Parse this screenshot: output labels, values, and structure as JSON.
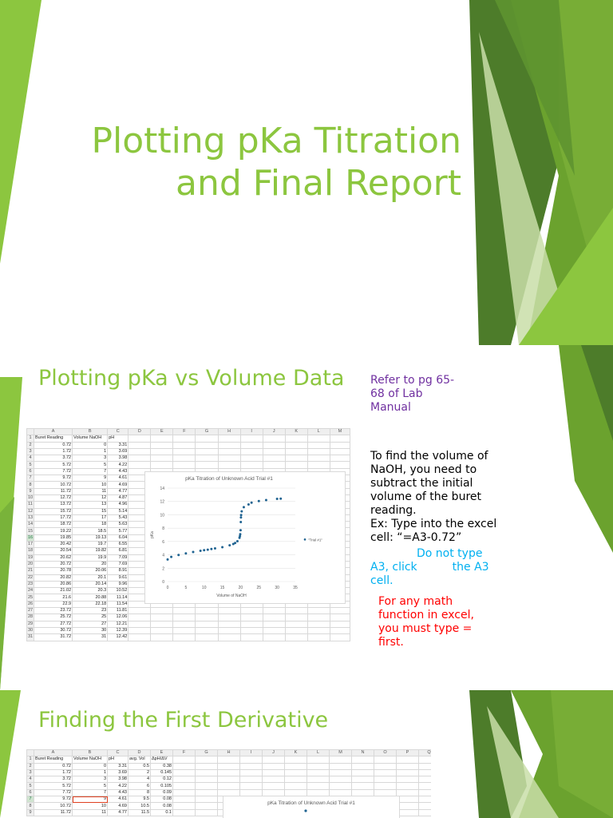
{
  "slide1": {
    "title_line1": "Plotting pKa Titration",
    "title_line2": "and Final Report"
  },
  "slide2": {
    "heading": "Plotting pKa vs Volume Data",
    "ref_note": [
      "Refer to pg 65-",
      "68 of Lab",
      "Manual"
    ],
    "instruction": [
      "To find the volume of",
      "NaOH, you need to",
      "subtract the initial",
      "volume of the buret",
      "reading.",
      "Ex: Type into the excel",
      "cell: “=A3-0.72”"
    ],
    "tip": [
      "Do not type",
      "A3, click",
      "the A3",
      "cell."
    ],
    "warning": [
      "For any math",
      "function in excel,",
      "you must type =",
      "first."
    ],
    "sheet": {
      "columns": [
        "",
        "A",
        "B",
        "C",
        "D",
        "E",
        "F",
        "G",
        "H",
        "I",
        "J",
        "K",
        "L",
        "M"
      ],
      "headers": [
        "Buret Reading",
        "Volume NaOH",
        "pH"
      ],
      "rows": [
        [
          "0.72",
          "0",
          "3.31"
        ],
        [
          "1.72",
          "1",
          "3.69"
        ],
        [
          "3.72",
          "3",
          "3.98"
        ],
        [
          "5.72",
          "5",
          "4.22"
        ],
        [
          "7.72",
          "7",
          "4.43"
        ],
        [
          "9.72",
          "9",
          "4.61"
        ],
        [
          "10.72",
          "10",
          "4.69"
        ],
        [
          "11.72",
          "11",
          "4.77"
        ],
        [
          "12.72",
          "12",
          "4.87"
        ],
        [
          "13.72",
          "13",
          "4.96"
        ],
        [
          "15.72",
          "15",
          "5.14"
        ],
        [
          "17.72",
          "17",
          "5.43"
        ],
        [
          "18.72",
          "18",
          "5.63"
        ],
        [
          "19.22",
          "18.5",
          "5.77"
        ],
        [
          "19.85",
          "19.13",
          "6.04"
        ],
        [
          "20.42",
          "19.7",
          "6.55"
        ],
        [
          "20.54",
          "19.82",
          "6.81"
        ],
        [
          "20.62",
          "19.9",
          "7.09"
        ],
        [
          "20.72",
          "20",
          "7.69"
        ],
        [
          "20.78",
          "20.06",
          "8.91"
        ],
        [
          "20.82",
          "20.1",
          "9.61"
        ],
        [
          "20.86",
          "20.14",
          "9.96"
        ],
        [
          "21.02",
          "20.3",
          "10.52"
        ],
        [
          "21.6",
          "20.88",
          "11.14"
        ],
        [
          "22.9",
          "22.18",
          "11.54"
        ],
        [
          "23.72",
          "23",
          "11.81"
        ],
        [
          "25.72",
          "25",
          "12.06"
        ],
        [
          "27.72",
          "27",
          "12.21"
        ],
        [
          "30.72",
          "30",
          "12.39"
        ],
        [
          "31.72",
          "31",
          "12.42"
        ]
      ]
    }
  },
  "chart_data": [
    {
      "type": "scatter",
      "title": "pKa Titration of Unknown Acid Trial #1",
      "xlabel": "Volume of NaOH",
      "ylabel": "pKa",
      "xlim": [
        0,
        35
      ],
      "ylim": [
        0,
        14
      ],
      "xticks": [
        0,
        5,
        10,
        15,
        20,
        25,
        30,
        35
      ],
      "yticks": [
        0,
        2,
        4,
        6,
        8,
        10,
        12,
        14
      ],
      "grid": true,
      "legend": "right",
      "series": [
        {
          "name": "\"Trial #1\"",
          "color": "#1f6391",
          "x": [
            0,
            1,
            3,
            5,
            7,
            9,
            10,
            11,
            12,
            13,
            15,
            17,
            18,
            18.5,
            19.13,
            19.7,
            19.82,
            19.9,
            20,
            20.06,
            20.1,
            20.14,
            20.3,
            20.88,
            22.18,
            23,
            25,
            27,
            30,
            31
          ],
          "y": [
            3.31,
            3.69,
            3.98,
            4.22,
            4.43,
            4.61,
            4.69,
            4.77,
            4.87,
            4.96,
            5.14,
            5.43,
            5.63,
            5.77,
            6.04,
            6.55,
            6.81,
            7.09,
            7.69,
            8.91,
            9.61,
            9.96,
            10.52,
            11.14,
            11.54,
            11.81,
            12.06,
            12.21,
            12.39,
            12.42
          ]
        }
      ]
    },
    {
      "type": "scatter",
      "title": "pKa Titration of Unknown Acid Trial #1",
      "series": [
        {
          "color": "#1f6391",
          "x": [
            0
          ],
          "y": [
            3.31
          ]
        }
      ]
    }
  ],
  "slide3": {
    "heading": "Finding the First Derivative",
    "sheet": {
      "columns": [
        "",
        "A",
        "B",
        "C",
        "D",
        "E",
        "F",
        "G",
        "H",
        "I",
        "J",
        "K",
        "L",
        "M",
        "N",
        "O",
        "P",
        "Q"
      ],
      "headers": [
        "Buret Reading",
        "Volume NaOH",
        "pH",
        "avg. Vol",
        "ΔpH/ΔV"
      ],
      "rows": [
        [
          "0.72",
          "0",
          "3.31",
          "0.5",
          "0.38"
        ],
        [
          "1.72",
          "1",
          "3.69",
          "2",
          "0.145"
        ],
        [
          "3.72",
          "3",
          "3.98",
          "4",
          "0.12"
        ],
        [
          "5.72",
          "5",
          "4.22",
          "6",
          "0.105"
        ],
        [
          "7.72",
          "7",
          "4.43",
          "8",
          "0.09"
        ],
        [
          "9.72",
          "9",
          "4.61",
          "9.5",
          "0.08"
        ],
        [
          "10.72",
          "10",
          "4.69",
          "10.5",
          "0.08"
        ],
        [
          "11.72",
          "11",
          "4.77",
          "11.5",
          "0.1"
        ]
      ]
    }
  },
  "colors": {
    "title_green": "#8cc63f",
    "dark_green": "#4f7f2a",
    "mid_green": "#6aa12f",
    "light_green": "#9bc556"
  }
}
